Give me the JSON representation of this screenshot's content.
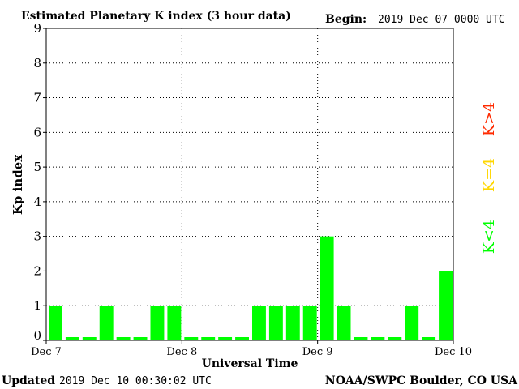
{
  "header": {
    "title": "Estimated Planetary K index (3 hour data)",
    "begin_label": "Begin:",
    "begin_value": "2019 Dec 07 0000 UTC"
  },
  "footer": {
    "updated_label": "Updated",
    "updated_value": "2019 Dec 10 00:30:02 UTC",
    "source": "NOAA/SWPC Boulder, CO USA"
  },
  "legend": {
    "above": "K>4",
    "equal": "K=4",
    "below": "K<4"
  },
  "colors": {
    "below": "#00ff00",
    "equal": "#ffd700",
    "above": "#ff2a00",
    "frame": "#000000",
    "grid": "#000000",
    "background": "#ffffff"
  },
  "chart_data": {
    "type": "bar",
    "title": "Estimated Planetary K index (3 hour data)",
    "xlabel": "Universal Time",
    "ylabel": "Kp index",
    "ylim": [
      0,
      9
    ],
    "yticks": [
      0,
      1,
      2,
      3,
      4,
      5,
      6,
      7,
      8,
      9
    ],
    "xticks": [
      "Dec 7",
      "Dec 8",
      "Dec 9",
      "Dec 10"
    ],
    "grid": true,
    "interval_hours": 3,
    "values": [
      1,
      0,
      0,
      1,
      0,
      0,
      1,
      1,
      0,
      0,
      0,
      0,
      1,
      1,
      1,
      1,
      3,
      1,
      0,
      0,
      0,
      1,
      0,
      2
    ]
  }
}
